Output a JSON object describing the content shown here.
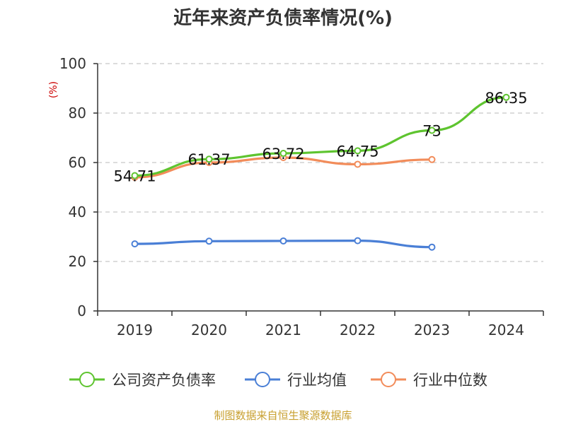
{
  "chart_data": {
    "type": "line",
    "title": "近年来资产负债率情况(%)",
    "ylabel": "(%)",
    "xlabel": "",
    "categories": [
      "2019",
      "2020",
      "2021",
      "2022",
      "2023",
      "2024"
    ],
    "ylim": [
      0,
      100
    ],
    "yticks": [
      0,
      20,
      40,
      60,
      80,
      100
    ],
    "ytick_labels": [
      "0",
      "20",
      "40",
      "60",
      "80",
      "100"
    ],
    "grid": true,
    "legend_position": "bottom",
    "series": [
      {
        "name": "公司资产负债率",
        "color": "#5ec42f",
        "values": [
          54.71,
          61.37,
          63.72,
          64.75,
          73,
          86.35
        ],
        "labels": [
          "54.71",
          "61.37",
          "63.72",
          "64.75",
          "73",
          "86.35"
        ]
      },
      {
        "name": "行业均值",
        "color": "#4a7fd6",
        "values": [
          27.1,
          28.2,
          28.3,
          28.4,
          25.8,
          null
        ]
      },
      {
        "name": "行业中位数",
        "color": "#f28c5a",
        "values": [
          54.0,
          60.0,
          62.0,
          59.3,
          61.2,
          null
        ]
      }
    ]
  },
  "footer": {
    "source": "制图数据来自恒生聚源数据库"
  }
}
